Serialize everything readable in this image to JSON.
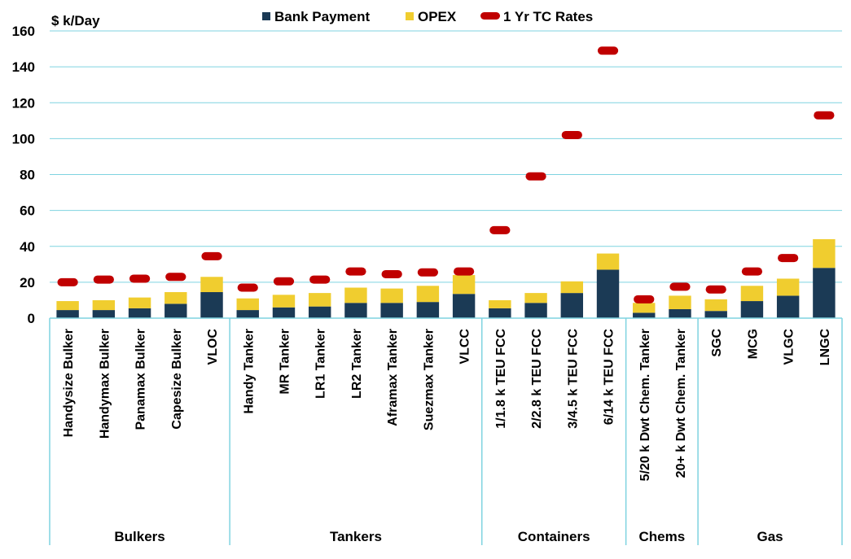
{
  "chart_data": {
    "type": "bar",
    "stacked": true,
    "ylabel": "$ k/Day",
    "ylim": [
      0,
      160
    ],
    "yticks": [
      0,
      20,
      40,
      60,
      80,
      100,
      120,
      140,
      160
    ],
    "grid": true,
    "legend_position": "top",
    "categories": [
      "Handysize Bulker",
      "Handymax Bulker",
      "Panamax Bulker",
      "Capesize Bulker",
      "VLOC",
      "Handy Tanker",
      "MR Tanker",
      "LR1 Tanker",
      "LR2 Tanker",
      "Aframax Tanker",
      "Suezmax Tanker",
      "VLCC",
      "1/1.8 k TEU FCC",
      "2/2.8 k TEU FCC",
      "3/4.5 k TEU FCC",
      "6/14 k TEU FCC",
      "5/20 k Dwt Chem. Tanker",
      "20+ k Dwt Chem. Tanker",
      "SGC",
      "MCG",
      "VLGC",
      "LNGC"
    ],
    "groups": [
      {
        "label": "Bulkers",
        "count": 5
      },
      {
        "label": "Tankers",
        "count": 7
      },
      {
        "label": "Containers",
        "count": 4
      },
      {
        "label": "Chems",
        "count": 2
      },
      {
        "label": "Gas",
        "count": 4
      }
    ],
    "series": [
      {
        "name": "Bank Payment",
        "kind": "bar",
        "color": "#1b3a55",
        "values": [
          4.5,
          4.5,
          5.5,
          8,
          14.5,
          4.5,
          6,
          6.5,
          8.5,
          8.5,
          9,
          13.5,
          5.5,
          8.5,
          14,
          27,
          3,
          5,
          4,
          9.5,
          12.5,
          28
        ]
      },
      {
        "name": "OPEX",
        "kind": "bar",
        "color": "#f0cd2f",
        "values": [
          5,
          5.5,
          6,
          6.5,
          8.5,
          6.5,
          7,
          7.5,
          8.5,
          8,
          9,
          10.5,
          4.5,
          5.5,
          6.5,
          9,
          5.5,
          7.5,
          6.5,
          8.5,
          9.5,
          16
        ]
      },
      {
        "name": "1 Yr TC Rates",
        "kind": "marker",
        "color": "#c00000",
        "values": [
          20,
          21.5,
          22,
          23,
          34.5,
          17,
          20.5,
          21.5,
          26,
          24.5,
          25.5,
          26,
          49,
          79,
          102,
          149,
          10.5,
          17.5,
          16,
          26,
          33.5,
          113
        ]
      }
    ]
  }
}
